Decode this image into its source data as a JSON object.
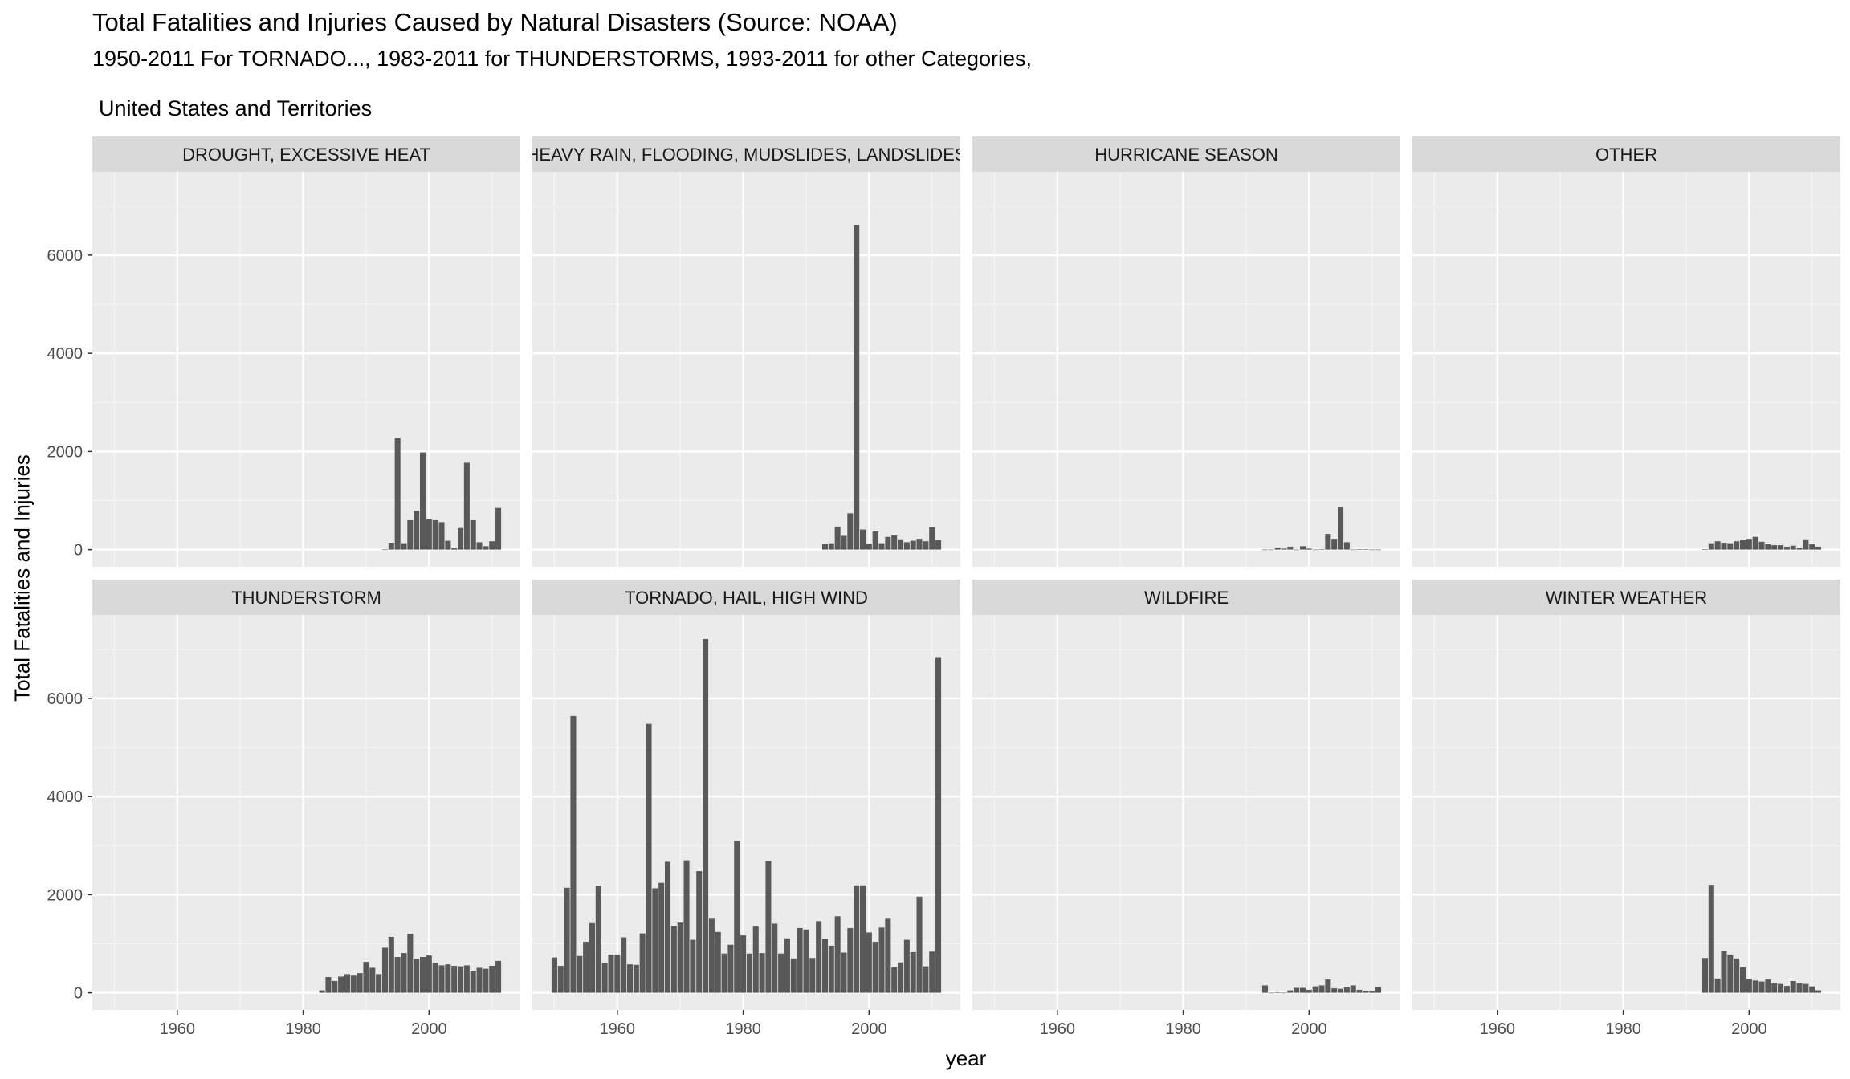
{
  "chart_data": {
    "type": "bar",
    "title": "Total Fatalities and Injuries Caused by Natural Disasters (Source: NOAA)",
    "subtitle": "1950-2011 For TORNADO..., 1983-2011 for THUNDERSTORMS, 1993-2011 for other Categories,",
    "subtitle2": "United States and Territories",
    "xlabel": "year",
    "ylabel": "Total Fatalities and Injuries",
    "xlim": [
      1946.5,
      2014.5
    ],
    "ylim": [
      -350,
      7700
    ],
    "xticks": [
      1960,
      1980,
      2000
    ],
    "yticks": [
      0,
      2000,
      4000,
      6000
    ],
    "facet_layout": {
      "rows": 2,
      "cols": 4
    },
    "colors": {
      "bar": "#595959",
      "panel": "#ebebeb",
      "strip": "#d9d9d9",
      "grid": "#ffffff"
    },
    "panels": [
      {
        "label": "DROUGHT, EXCESSIVE HEAT",
        "x": [
          1993,
          1994,
          1995,
          1996,
          1997,
          1998,
          1999,
          2000,
          2001,
          2002,
          2003,
          2004,
          2005,
          2006,
          2007,
          2008,
          2009,
          2010,
          2011
        ],
        "values": [
          2,
          140,
          2270,
          130,
          600,
          790,
          1980,
          620,
          600,
          560,
          180,
          30,
          440,
          1770,
          600,
          150,
          70,
          170,
          850
        ]
      },
      {
        "label": "HEAVY RAIN, FLOODING, MUDSLIDES, LANDSLIDES",
        "x": [
          1993,
          1994,
          1995,
          1996,
          1997,
          1998,
          1999,
          2000,
          2001,
          2002,
          2003,
          2004,
          2005,
          2006,
          2007,
          2008,
          2009,
          2010,
          2011
        ],
        "values": [
          120,
          130,
          470,
          280,
          740,
          6620,
          410,
          120,
          370,
          130,
          260,
          290,
          210,
          150,
          180,
          220,
          170,
          460,
          190
        ]
      },
      {
        "label": "HURRICANE SEASON",
        "x": [
          1993,
          1994,
          1995,
          1996,
          1997,
          1998,
          1999,
          2000,
          2001,
          2002,
          2003,
          2004,
          2005,
          2006,
          2007,
          2008,
          2009,
          2010,
          2011
        ],
        "values": [
          0,
          0,
          40,
          20,
          60,
          0,
          70,
          20,
          0,
          10,
          320,
          220,
          860,
          150,
          0,
          10,
          10,
          0,
          0
        ]
      },
      {
        "label": "OTHER",
        "x": [
          1993,
          1994,
          1995,
          1996,
          1997,
          1998,
          1999,
          2000,
          2001,
          2002,
          2003,
          2004,
          2005,
          2006,
          2007,
          2008,
          2009,
          2010,
          2011
        ],
        "values": [
          10,
          130,
          170,
          140,
          130,
          170,
          200,
          220,
          260,
          160,
          110,
          90,
          90,
          60,
          80,
          40,
          210,
          110,
          60
        ]
      },
      {
        "label": "THUNDERSTORM",
        "x": [
          1983,
          1984,
          1985,
          1986,
          1987,
          1988,
          1989,
          1990,
          1991,
          1992,
          1993,
          1994,
          1995,
          1996,
          1997,
          1998,
          1999,
          2000,
          2001,
          2002,
          2003,
          2004,
          2005,
          2006,
          2007,
          2008,
          2009,
          2010,
          2011
        ],
        "values": [
          50,
          320,
          240,
          330,
          380,
          350,
          400,
          630,
          510,
          380,
          920,
          1140,
          730,
          810,
          1200,
          690,
          730,
          760,
          610,
          560,
          580,
          550,
          540,
          560,
          450,
          510,
          490,
          550,
          650
        ]
      },
      {
        "label": "TORNADO, HAIL, HIGH WIND",
        "x": [
          1950,
          1951,
          1952,
          1953,
          1954,
          1955,
          1956,
          1957,
          1958,
          1959,
          1960,
          1961,
          1962,
          1963,
          1964,
          1965,
          1966,
          1967,
          1968,
          1969,
          1970,
          1971,
          1972,
          1973,
          1974,
          1975,
          1976,
          1977,
          1978,
          1979,
          1980,
          1981,
          1982,
          1983,
          1984,
          1985,
          1986,
          1987,
          1988,
          1989,
          1990,
          1991,
          1992,
          1993,
          1994,
          1995,
          1996,
          1997,
          1998,
          1999,
          2000,
          2001,
          2002,
          2003,
          2004,
          2005,
          2006,
          2007,
          2008,
          2009,
          2010,
          2011
        ],
        "values": [
          720,
          550,
          2140,
          5640,
          750,
          1040,
          1420,
          2180,
          600,
          780,
          780,
          1130,
          580,
          570,
          1210,
          5480,
          2130,
          2240,
          2670,
          1360,
          1430,
          2700,
          1080,
          2480,
          7210,
          1510,
          1240,
          800,
          980,
          3090,
          1170,
          800,
          1350,
          810,
          2690,
          1410,
          800,
          1110,
          700,
          1320,
          1290,
          710,
          1460,
          1100,
          960,
          1560,
          820,
          1320,
          2190,
          2190,
          1230,
          1040,
          1330,
          1510,
          520,
          620,
          1080,
          830,
          1960,
          540,
          840,
          6840
        ]
      },
      {
        "label": "WILDFIRE",
        "x": [
          1993,
          1994,
          1995,
          1996,
          1997,
          1998,
          1999,
          2000,
          2001,
          2002,
          2003,
          2004,
          2005,
          2006,
          2007,
          2008,
          2009,
          2010,
          2011
        ],
        "values": [
          150,
          0,
          10,
          0,
          50,
          100,
          100,
          60,
          130,
          150,
          270,
          90,
          80,
          110,
          150,
          60,
          40,
          30,
          120
        ]
      },
      {
        "label": "WINTER WEATHER",
        "x": [
          1993,
          1994,
          1995,
          1996,
          1997,
          1998,
          1999,
          2000,
          2001,
          2002,
          2003,
          2004,
          2005,
          2006,
          2007,
          2008,
          2009,
          2010,
          2011
        ],
        "values": [
          710,
          2200,
          290,
          860,
          780,
          700,
          520,
          280,
          250,
          230,
          270,
          200,
          180,
          140,
          240,
          200,
          180,
          130,
          50
        ]
      }
    ]
  }
}
